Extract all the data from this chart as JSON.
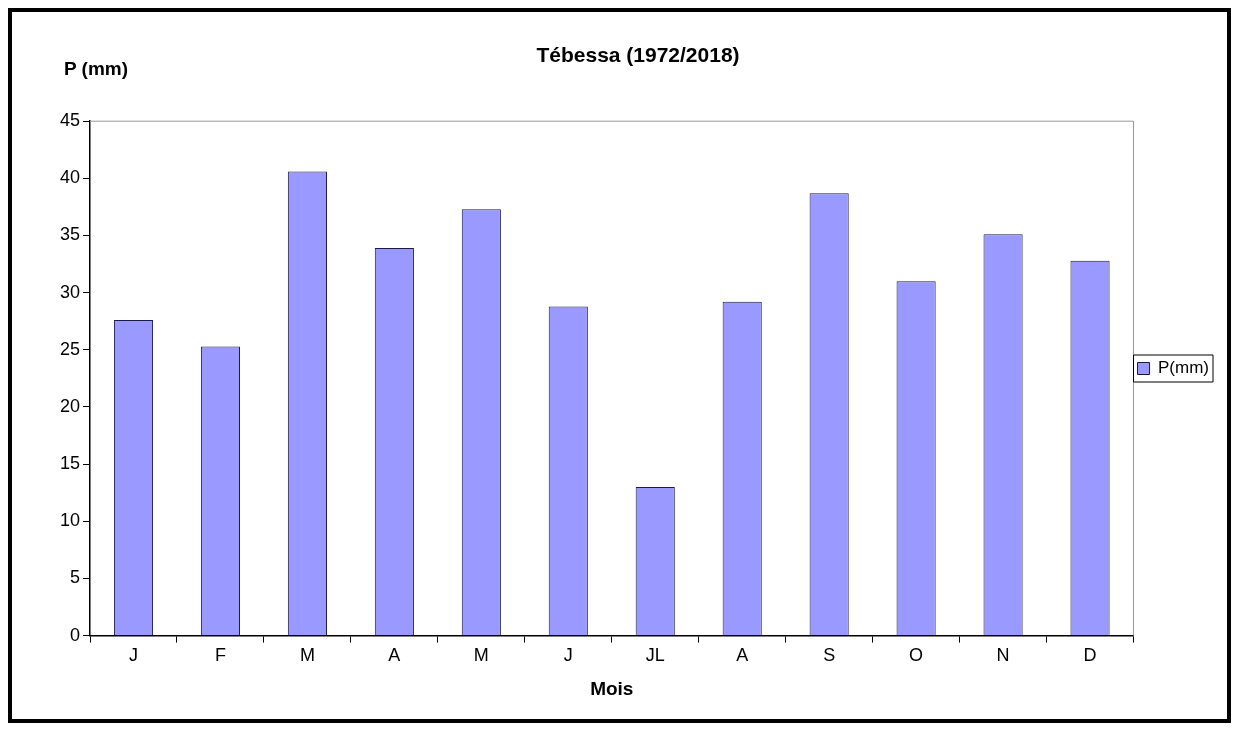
{
  "chart_data": {
    "type": "bar",
    "title": "Tébessa (1972/2018)",
    "xlabel": "Mois",
    "ylabel": "P (mm)",
    "categories": [
      "J",
      "F",
      "M",
      "A",
      "M",
      "J",
      "JL",
      "A",
      "S",
      "O",
      "N",
      "D"
    ],
    "series": [
      {
        "name": "P(mm)",
        "color": "#9999ff",
        "values": [
          27.6,
          25.3,
          40.6,
          33.9,
          37.3,
          28.8,
          13.0,
          29.2,
          38.7,
          31.0,
          35.1,
          32.8
        ]
      }
    ],
    "ylim": [
      0,
      45
    ],
    "yticks": [
      0,
      5,
      10,
      15,
      20,
      25,
      30,
      35,
      40,
      45
    ],
    "grid": false,
    "legend": "right"
  }
}
